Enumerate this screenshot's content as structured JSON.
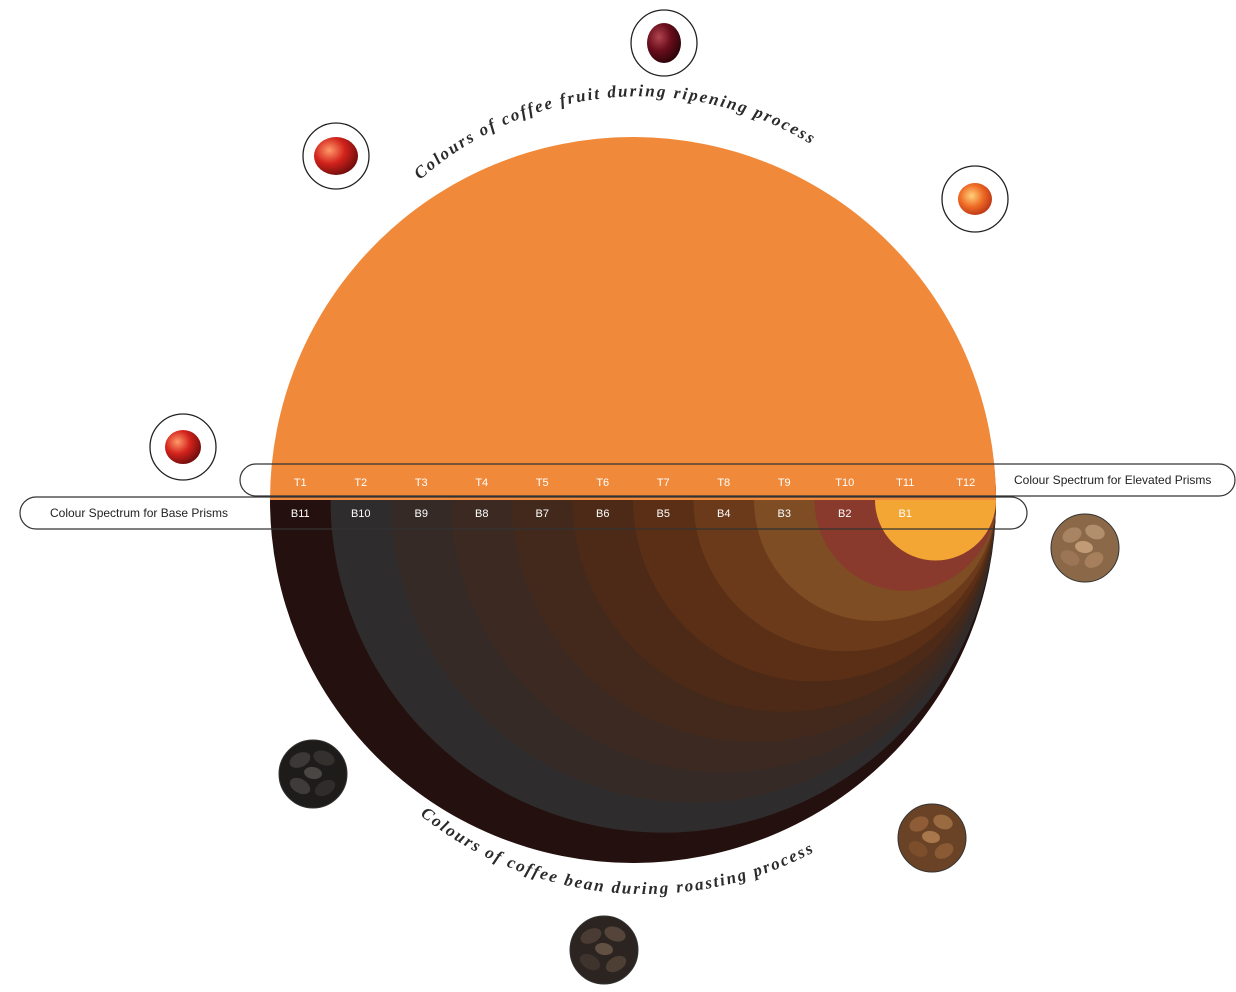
{
  "top_caption": "Colours of coffee fruit during ripening process",
  "bottom_caption": "Colours of coffee bean during roasting process",
  "elevated_label": "Colour Spectrum for Elevated Prisms",
  "base_label": "Colour Spectrum for Base Prisms",
  "top_bands": [
    {
      "label": "T1",
      "color": "#f08a3a"
    },
    {
      "label": "T2",
      "color": "#e2532b"
    },
    {
      "label": "T3",
      "color": "#d62a26"
    },
    {
      "label": "T4",
      "color": "#b71e22"
    },
    {
      "label": "T5",
      "color": "#8c1619"
    },
    {
      "label": "T6",
      "color": "#5e1215"
    },
    {
      "label": "T7",
      "color": "#2c1112"
    },
    {
      "label": "T8",
      "color": "#6a1316"
    },
    {
      "label": "T9",
      "color": "#ce2a28"
    },
    {
      "label": "T10",
      "color": "#e25a2a"
    },
    {
      "label": "T11",
      "color": "#f0934a"
    },
    {
      "label": "T12",
      "color": "#f3a634"
    }
  ],
  "bottom_bands": [
    {
      "label": "B11",
      "color": "#24100e"
    },
    {
      "label": "B10",
      "color": "#2e2c2c"
    },
    {
      "label": "B9",
      "color": "#352a26"
    },
    {
      "label": "B8",
      "color": "#3c2a22"
    },
    {
      "label": "B7",
      "color": "#43291b"
    },
    {
      "label": "B6",
      "color": "#4d2a17"
    },
    {
      "label": "B5",
      "color": "#5a2f15"
    },
    {
      "label": "B4",
      "color": "#6b3a1a"
    },
    {
      "label": "B3",
      "color": "#7e4d24"
    },
    {
      "label": "B2",
      "color": "#8a3a2c"
    },
    {
      "label": "B1",
      "color": "#f3a634"
    }
  ],
  "icons": {
    "cherry_top": "coffee-cherry-dark-red-icon",
    "cherry_upper_left": "coffee-cherry-red-icon",
    "cherry_upper_right": "coffee-cherry-orange-icon",
    "cherry_left": "coffee-cherry-red-orange-icon",
    "bean_right": "light-roast-bean-icon",
    "bean_lower_left": "dark-roast-bean-icon",
    "bean_lower_right": "medium-roast-bean-icon",
    "bean_bottom": "medium-dark-roast-bean-icon"
  }
}
